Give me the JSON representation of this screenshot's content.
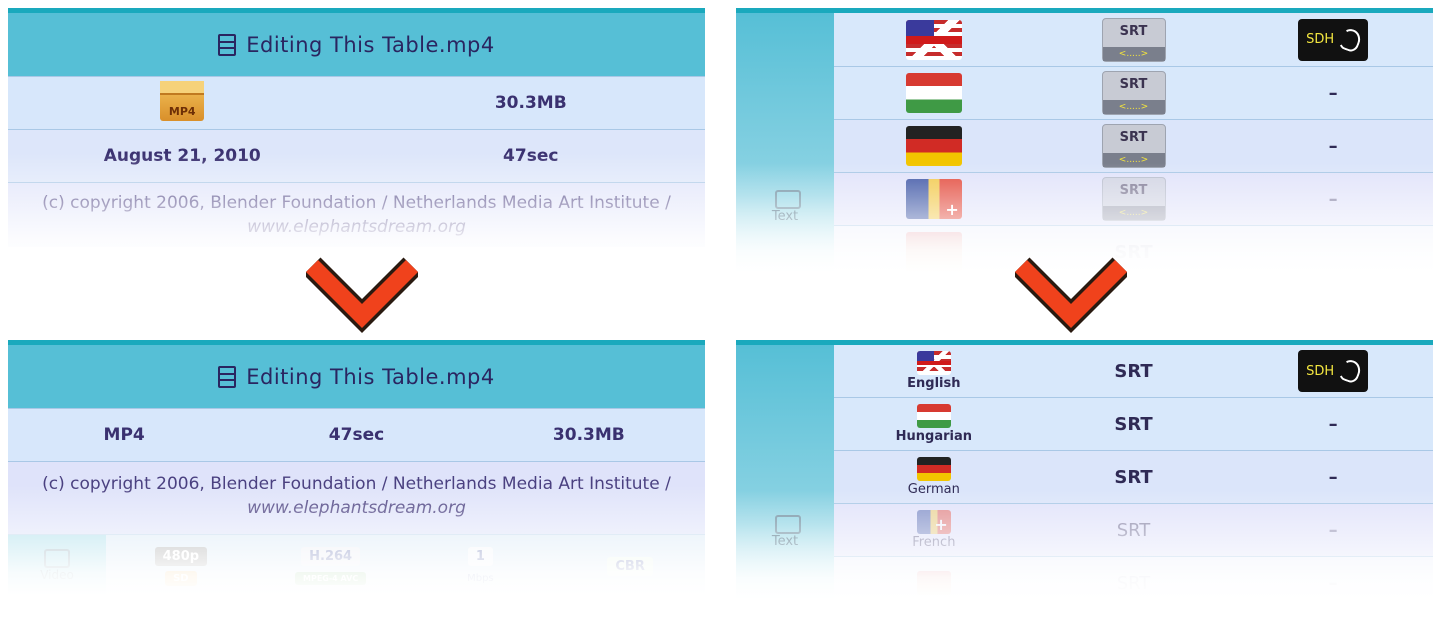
{
  "before": {
    "title": "Editing This Table.mp4",
    "format_icon_text": "MP4",
    "size": "30.3MB",
    "date": "August 21, 2010",
    "duration": "47sec",
    "copyright_main": "(c) copyright 2006, Blender Foundation / Netherlands Media Art Institute / ",
    "copyright_link": "www.elephantsdream.org"
  },
  "after": {
    "title": "Editing This Table.mp4",
    "format": "MP4",
    "duration": "47sec",
    "size": "30.3MB",
    "copyright_main": "(c) copyright 2006, Blender Foundation / Netherlands Media Art Institute / ",
    "copyright_link": "www.elephantsdream.org",
    "video_label": "Video",
    "resolution": "480p",
    "resolution_sub": "SD",
    "codec": "H.264",
    "codec_sub": "MPEG-4 AVC",
    "bitrate": "1",
    "bitrate_unit": "Mbps",
    "rate_mode": "CBR"
  },
  "subs_before": {
    "side_label": "Text",
    "srt_label": "SRT",
    "srt_sub": "<.....>",
    "sdh_label": "SDH",
    "dash": "–"
  },
  "subs_after": {
    "side_label": "Text",
    "rows": [
      {
        "language": "English",
        "format": "SRT",
        "extra": "SDH"
      },
      {
        "language": "Hungarian",
        "format": "SRT",
        "extra": "–"
      },
      {
        "language": "German",
        "format": "SRT",
        "extra": "–"
      },
      {
        "language": "French",
        "format": "SRT",
        "extra": "–"
      },
      {
        "language": "",
        "format": "SRT",
        "extra": "–"
      }
    ]
  },
  "colors": {
    "header": "#56bfd6",
    "row": "#d7e7fb",
    "arrow": "#f0421c",
    "text": "#3a3170"
  }
}
